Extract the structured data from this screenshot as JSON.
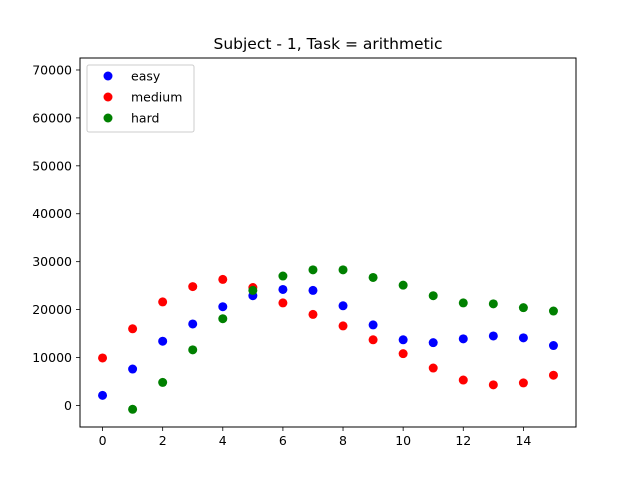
{
  "chart_data": {
    "type": "scatter",
    "title": "Subject - 1, Task = arithmetic",
    "xlabel": "",
    "ylabel": "",
    "xlim": [
      -0.75,
      15.75
    ],
    "ylim": [
      -4500,
      72500
    ],
    "xticks": [
      0,
      2,
      4,
      6,
      8,
      10,
      12,
      14
    ],
    "yticks": [
      0,
      10000,
      20000,
      30000,
      40000,
      50000,
      60000,
      70000
    ],
    "grid": false,
    "legend_position": "upper-left",
    "x": [
      0,
      1,
      2,
      3,
      4,
      5,
      6,
      7,
      8,
      9,
      10,
      11,
      12,
      13,
      14,
      15
    ],
    "series": [
      {
        "name": "easy",
        "color": "#0000ff",
        "values": [
          2100,
          7600,
          13400,
          17000,
          20600,
          22900,
          24200,
          24000,
          20800,
          16800,
          13700,
          13100,
          13900,
          14500,
          14100,
          12500
        ]
      },
      {
        "name": "medium",
        "color": "#ff0000",
        "values": [
          9900,
          16000,
          21600,
          24800,
          26300,
          24600,
          21400,
          19000,
          16600,
          13700,
          10800,
          7800,
          5300,
          4300,
          4700,
          6300
        ]
      },
      {
        "name": "hard",
        "color": "#008000",
        "values": [
          null,
          -800,
          4800,
          11600,
          18100,
          24000,
          27000,
          28300,
          28300,
          26700,
          25100,
          22900,
          21400,
          21200,
          20400,
          19700
        ]
      }
    ]
  }
}
